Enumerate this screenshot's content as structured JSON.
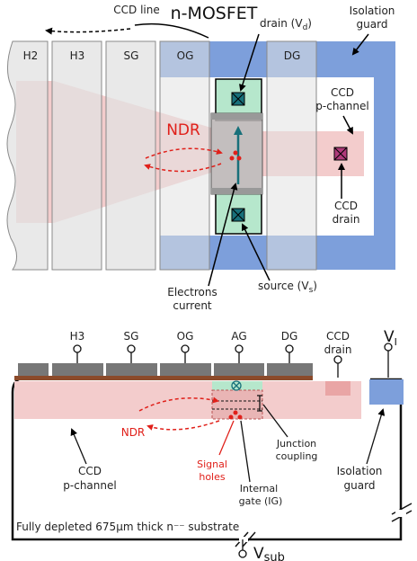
{
  "top": {
    "ccd_line": "CCD line",
    "nmosfet": "n-MOSFET",
    "drain_vd": "drain (V",
    "drain_sub": "d",
    "isolation_guard": [
      "Isolation",
      "guard"
    ],
    "gates": [
      "H2",
      "H3",
      "SG",
      "OG",
      "DG"
    ],
    "ndr": "NDR",
    "ccd_pchannel": [
      "CCD",
      "p-channel"
    ],
    "ccd_drain": [
      "CCD",
      "drain"
    ],
    "source_vs": "source (V",
    "source_sub": "s",
    "electrons_current": [
      "Electrons",
      "current"
    ]
  },
  "bottom": {
    "gates": [
      "H3",
      "SG",
      "OG",
      "AG",
      "DG"
    ],
    "ccd_drain": [
      "CCD",
      "drain"
    ],
    "vi": "V",
    "vi_sub": "I",
    "ndr": "NDR",
    "junction_coupling": [
      "Junction",
      "coupling"
    ],
    "signal_holes": [
      "Signal",
      "holes"
    ],
    "internal_gate": [
      "Internal",
      "gate (IG)"
    ],
    "ccd_pchannel": [
      "CCD",
      "p-channel"
    ],
    "isolation_guard": [
      "Isolation",
      "guard"
    ],
    "substrate": "Fully depleted 675μm thick n⁻⁻ substrate",
    "vsub": "V",
    "vsub_sub": "sub"
  },
  "colors": {
    "gate_fill": "#e2e2e2",
    "channel": "#f3cccc",
    "guard_blue": "#7d9fdb",
    "green": "#b6e7cc",
    "teal": "#18707a",
    "red": "#e0201a",
    "brown": "#8b4a2a",
    "metal": "#777777"
  }
}
